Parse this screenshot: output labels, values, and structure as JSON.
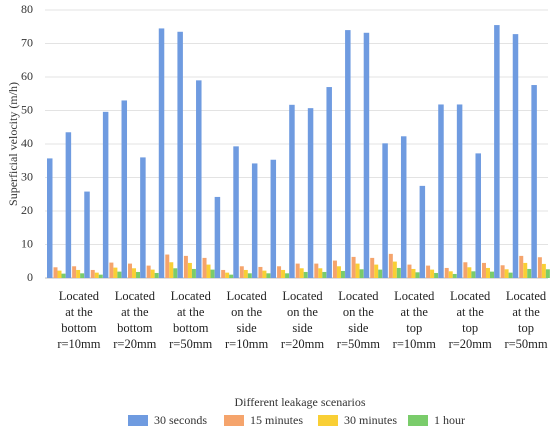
{
  "chart_data": {
    "type": "bar",
    "y_label": "Superficial velocity (m/h)",
    "x_label": "Different leakage scenarios",
    "categories": [
      null,
      "Located\nat the\nbottom\nr=10mm",
      null,
      null,
      "Located\nat the\nbottom\nr=20mm",
      null,
      null,
      "Located\nat the\nbottom\nr=50mm",
      null,
      null,
      "Located\non the\nside\nr=10mm",
      null,
      null,
      "Located\non the\nside\nr=20mm",
      null,
      null,
      "Located\non the\nside\nr=50mm",
      null,
      null,
      "Located\nat the\ntop\nr=10mm",
      null,
      null,
      "Located\nat the\ntop\nr=20mm",
      null,
      null,
      "Located\nat the\ntop\nr=50mm",
      null
    ],
    "series": [
      {
        "name": "30 seconds",
        "color": "#6f9be0",
        "values": [
          35.7,
          43.5,
          25.8,
          49.6,
          53,
          36,
          74.5,
          73.5,
          59,
          24.2,
          39.3,
          34.2,
          35.3,
          51.7,
          50.7,
          57,
          74,
          73.2,
          40.2,
          42.3,
          27.5,
          51.8,
          51.8,
          37.2,
          75.5,
          72.8,
          57.6
        ]
      },
      {
        "name": "15 minutes",
        "color": "#f5a46c",
        "values": [
          3.2,
          3.5,
          2.4,
          4.6,
          4.3,
          3.7,
          7,
          6.6,
          6,
          2.4,
          3.5,
          3.3,
          3.5,
          4.3,
          4.3,
          5.2,
          6.3,
          6,
          7.2,
          4,
          3.7,
          3,
          4.7,
          4.5,
          3.8,
          6.6,
          6.2
        ]
      },
      {
        "name": "30 minutes",
        "color": "#f9cf35",
        "values": [
          2.2,
          2.4,
          1.6,
          3.1,
          2.9,
          2.5,
          4.7,
          4.5,
          4,
          1.6,
          2.4,
          2.2,
          2.4,
          2.9,
          2.9,
          3.5,
          4.3,
          4,
          4.9,
          2.7,
          2.5,
          2,
          3.2,
          3,
          2.6,
          4.5,
          4.2
        ]
      },
      {
        "name": "1 hour",
        "color": "#7acc6b",
        "values": [
          1.3,
          1.4,
          1,
          1.9,
          1.8,
          1.5,
          2.9,
          2.7,
          2.5,
          1,
          1.4,
          1.4,
          1.4,
          1.8,
          1.8,
          2.1,
          2.6,
          2.5,
          3,
          1.7,
          1.5,
          1.2,
          2,
          1.9,
          1.6,
          2.7,
          2.6
        ]
      }
    ],
    "ylim": [
      0,
      80
    ],
    "yticks": [
      0,
      10,
      20,
      30,
      40,
      50,
      60,
      70,
      80
    ],
    "grid": true
  }
}
